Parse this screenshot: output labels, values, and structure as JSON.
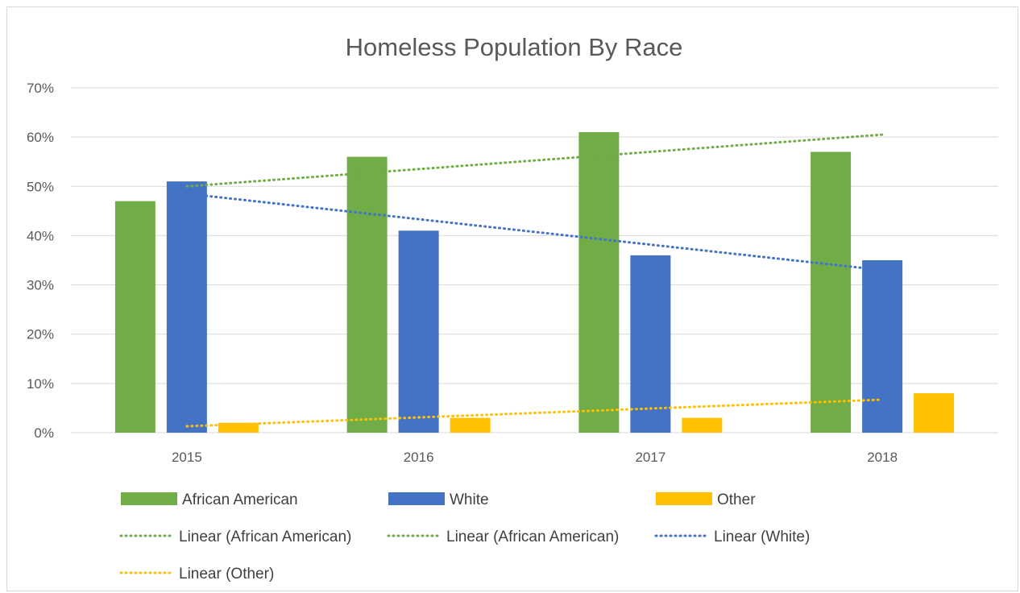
{
  "chart_data": {
    "type": "bar",
    "title": "Homeless Population By Race",
    "categories": [
      "2015",
      "2016",
      "2017",
      "2018"
    ],
    "series": [
      {
        "name": "African American",
        "values": [
          47,
          56,
          61,
          57
        ],
        "color": "#70ad47"
      },
      {
        "name": "White",
        "values": [
          51,
          41,
          36,
          35
        ],
        "color": "#4472c4"
      },
      {
        "name": "Other",
        "values": [
          2,
          3,
          3,
          8
        ],
        "color": "#ffc000"
      }
    ],
    "trendlines": [
      {
        "name": "Linear (African American)",
        "type": "linear",
        "series": "African American",
        "start": 50,
        "end": 60.5,
        "color": "#70ad47"
      },
      {
        "name": "Linear (African American)",
        "type": "linear",
        "series": "African American",
        "color": "#70ad47"
      },
      {
        "name": "Linear (White)",
        "type": "linear",
        "series": "White",
        "start": 48.5,
        "end": 33,
        "color": "#4472c4"
      },
      {
        "name": "Linear (Other)",
        "type": "linear",
        "series": "Other",
        "start": 1.3,
        "end": 6.7,
        "color": "#ffc000"
      }
    ],
    "yaxis": {
      "ticks": [
        "0%",
        "10%",
        "20%",
        "30%",
        "40%",
        "50%",
        "60%",
        "70%"
      ],
      "ylim": [
        0,
        70
      ]
    },
    "xlabel": "",
    "ylabel": "",
    "grid": true,
    "legend_position": "bottom"
  }
}
